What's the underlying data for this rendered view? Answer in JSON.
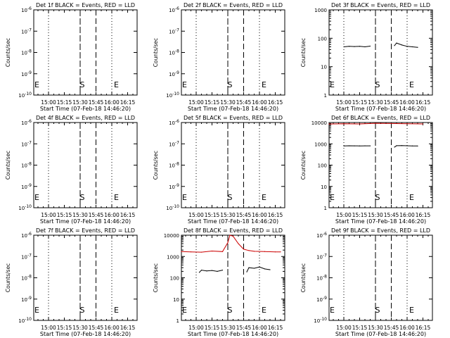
{
  "chart_data": [
    {
      "type": "line",
      "title": "Det 1f BLACK = Events, RED = LLD",
      "xlabel": "Start Time (07-Feb-18 14:46:20)",
      "ylabel": "Counts/sec",
      "xticks": [
        "15:00",
        "15:15",
        "15:30",
        "15:45",
        "16:00",
        "16:15"
      ],
      "yscale": "log-empty",
      "ylim": [
        1e-10,
        1e-06
      ],
      "yticks": [
        "10^-6",
        "10^-7",
        "10^-8",
        "10^-9",
        "10^-10"
      ],
      "markers": {
        "S": "15:30",
        "E": "15:45"
      },
      "dotted_lines": [
        "15:00",
        "15:30",
        "16:00"
      ],
      "dashed_lines": [
        "15:30",
        "15:45"
      ],
      "series": []
    },
    {
      "type": "line",
      "title": "Det 2f BLACK = Events, RED = LLD",
      "xlabel": "Start Time (07-Feb-18 14:46:20)",
      "ylabel": "Counts/sec",
      "xticks": [
        "15:00",
        "15:15",
        "15:30",
        "15:45",
        "16:00",
        "16:15"
      ],
      "yscale": "log-empty",
      "ylim": [
        1e-10,
        1e-06
      ],
      "yticks": [
        "10^-6",
        "10^-7",
        "10^-8",
        "10^-9",
        "10^-10"
      ],
      "markers": {
        "S": "15:30",
        "E": "15:45"
      },
      "dotted_lines": [
        "15:00",
        "15:30",
        "16:00"
      ],
      "dashed_lines": [
        "15:30",
        "15:45"
      ],
      "series": []
    },
    {
      "type": "line",
      "title": "Det 3f BLACK = Events, RED = LLD",
      "xlabel": "Start Time (07-Feb-18 14:46:20)",
      "ylabel": "Counts/sec",
      "xticks": [
        "15:00",
        "15:15",
        "15:30",
        "15:45",
        "16:00",
        "16:15"
      ],
      "yscale": "log",
      "ylim": [
        1,
        1000
      ],
      "yticks": [
        "1000",
        "100",
        "10",
        "1"
      ],
      "markers": {
        "S": "15:30",
        "E": "15:45"
      },
      "dotted_lines": [
        "15:00",
        "15:30",
        "16:00"
      ],
      "dashed_lines": [
        "15:30",
        "15:45"
      ],
      "series": [
        {
          "color": "#000000",
          "segments": [
            {
              "x": [
                "15:00",
                "15:05",
                "15:10",
                "15:15",
                "15:20",
                "15:25"
              ],
              "y": [
                50,
                52,
                51,
                52,
                50,
                53
              ]
            },
            {
              "x": [
                "15:48",
                "15:50",
                "15:55",
                "16:00",
                "16:05",
                "16:10"
              ],
              "y": [
                55,
                68,
                58,
                52,
                50,
                48
              ]
            }
          ]
        }
      ]
    },
    {
      "type": "line",
      "title": "Det 4f BLACK = Events, RED = LLD",
      "xlabel": "Start Time (07-Feb-18 14:46:20)",
      "ylabel": "Counts/sec",
      "xticks": [
        "15:00",
        "15:15",
        "15:30",
        "15:45",
        "16:00",
        "16:15"
      ],
      "yscale": "log-empty",
      "ylim": [
        1e-10,
        1e-06
      ],
      "yticks": [
        "10^-6",
        "10^-7",
        "10^-8",
        "10^-9",
        "10^-10"
      ],
      "markers": {
        "S": "15:30",
        "E": "15:45"
      },
      "dotted_lines": [
        "15:00",
        "15:30",
        "16:00"
      ],
      "dashed_lines": [
        "15:30",
        "15:45"
      ],
      "series": []
    },
    {
      "type": "line",
      "title": "Det 5f BLACK = Events, RED = LLD",
      "xlabel": "Start Time (07-Feb-18 14:46:20)",
      "ylabel": "Counts/sec",
      "xticks": [
        "15:00",
        "15:15",
        "15:30",
        "15:45",
        "16:00",
        "16:15"
      ],
      "yscale": "log-empty",
      "ylim": [
        1e-10,
        1e-06
      ],
      "yticks": [
        "10^-6",
        "10^-7",
        "10^-8",
        "10^-9",
        "10^-10"
      ],
      "markers": {
        "S": "15:30",
        "E": "15:45"
      },
      "dotted_lines": [
        "15:00",
        "15:30",
        "16:00"
      ],
      "dashed_lines": [
        "15:30",
        "15:45"
      ],
      "series": []
    },
    {
      "type": "line",
      "title": "Det 6f BLACK = Events, RED = LLD",
      "xlabel": "Start Time (07-Feb-18 14:46:20)",
      "ylabel": "Counts/sec",
      "xticks": [
        "15:00",
        "15:15",
        "15:30",
        "15:45",
        "16:00",
        "16:15"
      ],
      "yscale": "log",
      "ylim": [
        1,
        10000
      ],
      "yticks": [
        "10000",
        "1000",
        "100",
        "10",
        "1"
      ],
      "markers": {
        "S": "15:30",
        "E": "15:45"
      },
      "dotted_lines": [
        "15:00",
        "15:30",
        "16:00"
      ],
      "dashed_lines": [
        "15:30",
        "15:45"
      ],
      "series": [
        {
          "color": "#000000",
          "segments": [
            {
              "x": [
                "15:00",
                "15:05",
                "15:10",
                "15:15",
                "15:20",
                "15:25"
              ],
              "y": [
                800,
                810,
                805,
                800,
                808,
                806
              ]
            },
            {
              "x": [
                "15:48",
                "15:50",
                "15:55",
                "16:00",
                "16:05",
                "16:10"
              ],
              "y": [
                700,
                820,
                830,
                810,
                800,
                790
              ]
            }
          ]
        },
        {
          "color": "#cc0000",
          "segments": [
            {
              "x": [
                "14:45",
                "15:00",
                "15:15",
                "15:30",
                "15:45",
                "16:00",
                "16:15"
              ],
              "y": [
                8500,
                8700,
                8600,
                9200,
                9000,
                8800,
                8600
              ]
            }
          ]
        }
      ]
    },
    {
      "type": "line",
      "title": "Det 7f BLACK = Events, RED = LLD",
      "xlabel": "Start Time (07-Feb-18 14:46:20)",
      "ylabel": "Counts/sec",
      "xticks": [
        "15:00",
        "15:15",
        "15:30",
        "15:45",
        "16:00",
        "16:15"
      ],
      "yscale": "log-empty",
      "ylim": [
        1e-10,
        1e-06
      ],
      "yticks": [
        "10^-6",
        "10^-7",
        "10^-8",
        "10^-9",
        "10^-10"
      ],
      "markers": {
        "S": "15:30",
        "E": "15:45"
      },
      "dotted_lines": [
        "15:00",
        "15:30",
        "16:00"
      ],
      "dashed_lines": [
        "15:30",
        "15:45"
      ],
      "series": []
    },
    {
      "type": "line",
      "title": "Det 8f BLACK = Events, RED = LLD",
      "xlabel": "Start Time (07-Feb-18 14:46:20)",
      "ylabel": "Counts/sec",
      "xticks": [
        "15:00",
        "15:15",
        "15:30",
        "15:45",
        "16:00",
        "16:15"
      ],
      "yscale": "log",
      "ylim": [
        1,
        10000
      ],
      "yticks": [
        "10000",
        "1000",
        "100",
        "10",
        "1"
      ],
      "markers": {
        "S": "15:30",
        "E": "15:45"
      },
      "dotted_lines": [
        "15:00",
        "15:30",
        "16:00"
      ],
      "dashed_lines": [
        "15:30",
        "15:45"
      ],
      "series": [
        {
          "color": "#000000",
          "segments": [
            {
              "x": [
                "15:03",
                "15:05",
                "15:10",
                "15:15",
                "15:20",
                "15:25"
              ],
              "y": [
                180,
                230,
                210,
                220,
                200,
                230
              ]
            },
            {
              "x": [
                "15:48",
                "15:50",
                "15:55",
                "16:00",
                "16:05",
                "16:10"
              ],
              "y": [
                190,
                300,
                280,
                320,
                260,
                240
              ]
            }
          ]
        },
        {
          "color": "#cc0000",
          "segments": [
            {
              "x": [
                "14:45",
                "14:55",
                "15:05",
                "15:15",
                "15:25",
                "15:30",
                "15:32",
                "15:35",
                "15:40",
                "15:45",
                "15:50",
                "15:55",
                "16:05",
                "16:15",
                "16:20"
              ],
              "y": [
                1700,
                1650,
                1600,
                1800,
                1700,
                4500,
                10000,
                9000,
                4000,
                2200,
                1900,
                1750,
                1700,
                1650,
                1650
              ]
            }
          ]
        }
      ]
    },
    {
      "type": "line",
      "title": "Det 9f BLACK = Events, RED = LLD",
      "xlabel": "Start Time (07-Feb-18 14:46:20)",
      "ylabel": "Counts/sec",
      "xticks": [
        "15:00",
        "15:15",
        "15:30",
        "15:45",
        "16:00",
        "16:15"
      ],
      "yscale": "log-empty",
      "ylim": [
        1e-10,
        1e-06
      ],
      "yticks": [
        "10^-6",
        "10^-7",
        "10^-8",
        "10^-9",
        "10^-10"
      ],
      "markers": {
        "S": "15:30",
        "E": "15:45"
      },
      "dotted_lines": [
        "15:00",
        "15:30",
        "16:00"
      ],
      "dashed_lines": [
        "15:30",
        "15:45"
      ],
      "series": []
    }
  ]
}
